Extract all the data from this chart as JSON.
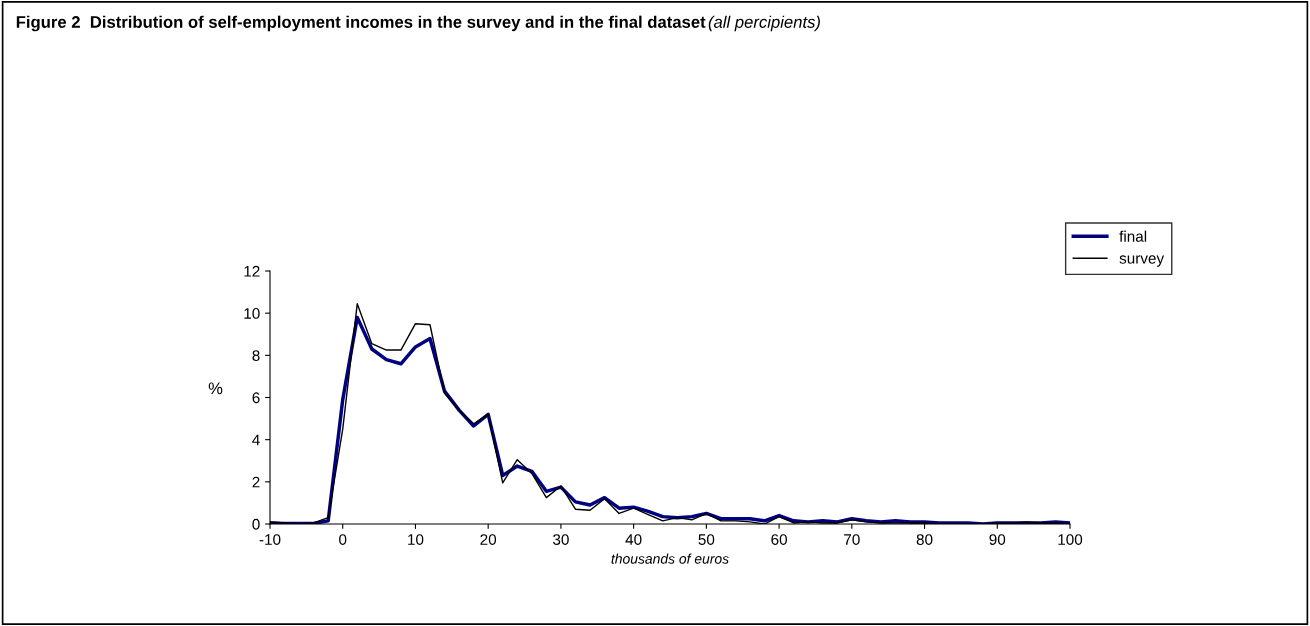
{
  "chart_data": {
    "type": "line",
    "title": "Figure 2  Distribution of self-employment incomes in the survey and in the final dataset",
    "subtitle": "(all percipients)",
    "xlabel": "thousands of euros",
    "ylabel": "%",
    "x": [
      -10,
      -8,
      -6,
      -4,
      -2,
      0,
      2,
      4,
      6,
      8,
      10,
      12,
      14,
      16,
      18,
      20,
      22,
      24,
      26,
      28,
      30,
      32,
      34,
      36,
      38,
      40,
      42,
      44,
      46,
      48,
      50,
      52,
      54,
      56,
      58,
      60,
      62,
      64,
      66,
      68,
      70,
      72,
      74,
      76,
      78,
      80,
      82,
      84,
      86,
      88,
      90,
      92,
      94,
      96,
      98,
      100
    ],
    "series": [
      {
        "name": "final",
        "color": "#000080",
        "values": [
          0.05,
          0.03,
          0.02,
          0.03,
          0.15,
          5.9,
          9.8,
          8.3,
          7.8,
          7.6,
          8.4,
          8.8,
          6.3,
          5.4,
          4.65,
          5.2,
          2.3,
          2.75,
          2.5,
          1.55,
          1.75,
          1.05,
          0.9,
          1.25,
          0.75,
          0.8,
          0.6,
          0.35,
          0.3,
          0.35,
          0.5,
          0.25,
          0.25,
          0.25,
          0.15,
          0.4,
          0.15,
          0.1,
          0.15,
          0.1,
          0.25,
          0.15,
          0.1,
          0.15,
          0.1,
          0.1,
          0.05,
          0.05,
          0.05,
          0.0,
          0.05,
          0.05,
          0.05,
          0.05,
          0.1,
          0.05
        ]
      },
      {
        "name": "survey",
        "color": "#000000",
        "values": [
          0.1,
          0.05,
          0.0,
          0.05,
          0.3,
          4.5,
          10.45,
          8.55,
          8.25,
          8.25,
          9.5,
          9.45,
          6.2,
          5.4,
          4.75,
          5.2,
          1.95,
          3.05,
          2.4,
          1.25,
          1.8,
          0.7,
          0.65,
          1.2,
          0.5,
          0.75,
          0.45,
          0.15,
          0.3,
          0.2,
          0.5,
          0.15,
          0.15,
          0.1,
          0.0,
          0.35,
          0.05,
          0.1,
          0.05,
          0.05,
          0.2,
          0.1,
          0.05,
          0.05,
          0.05,
          0.05,
          0.0,
          0.0,
          0.0,
          0.0,
          0.05,
          0.05,
          0.1,
          0.05,
          0.05,
          0.0
        ]
      }
    ],
    "xlim": [
      -10,
      100
    ],
    "xticks": [
      -10,
      0,
      10,
      20,
      30,
      40,
      50,
      60,
      70,
      80,
      90,
      100
    ],
    "ylim": [
      0,
      12
    ],
    "yticks": [
      0,
      2,
      4,
      6,
      8,
      10,
      12
    ],
    "grid": false,
    "legend": "top right"
  }
}
